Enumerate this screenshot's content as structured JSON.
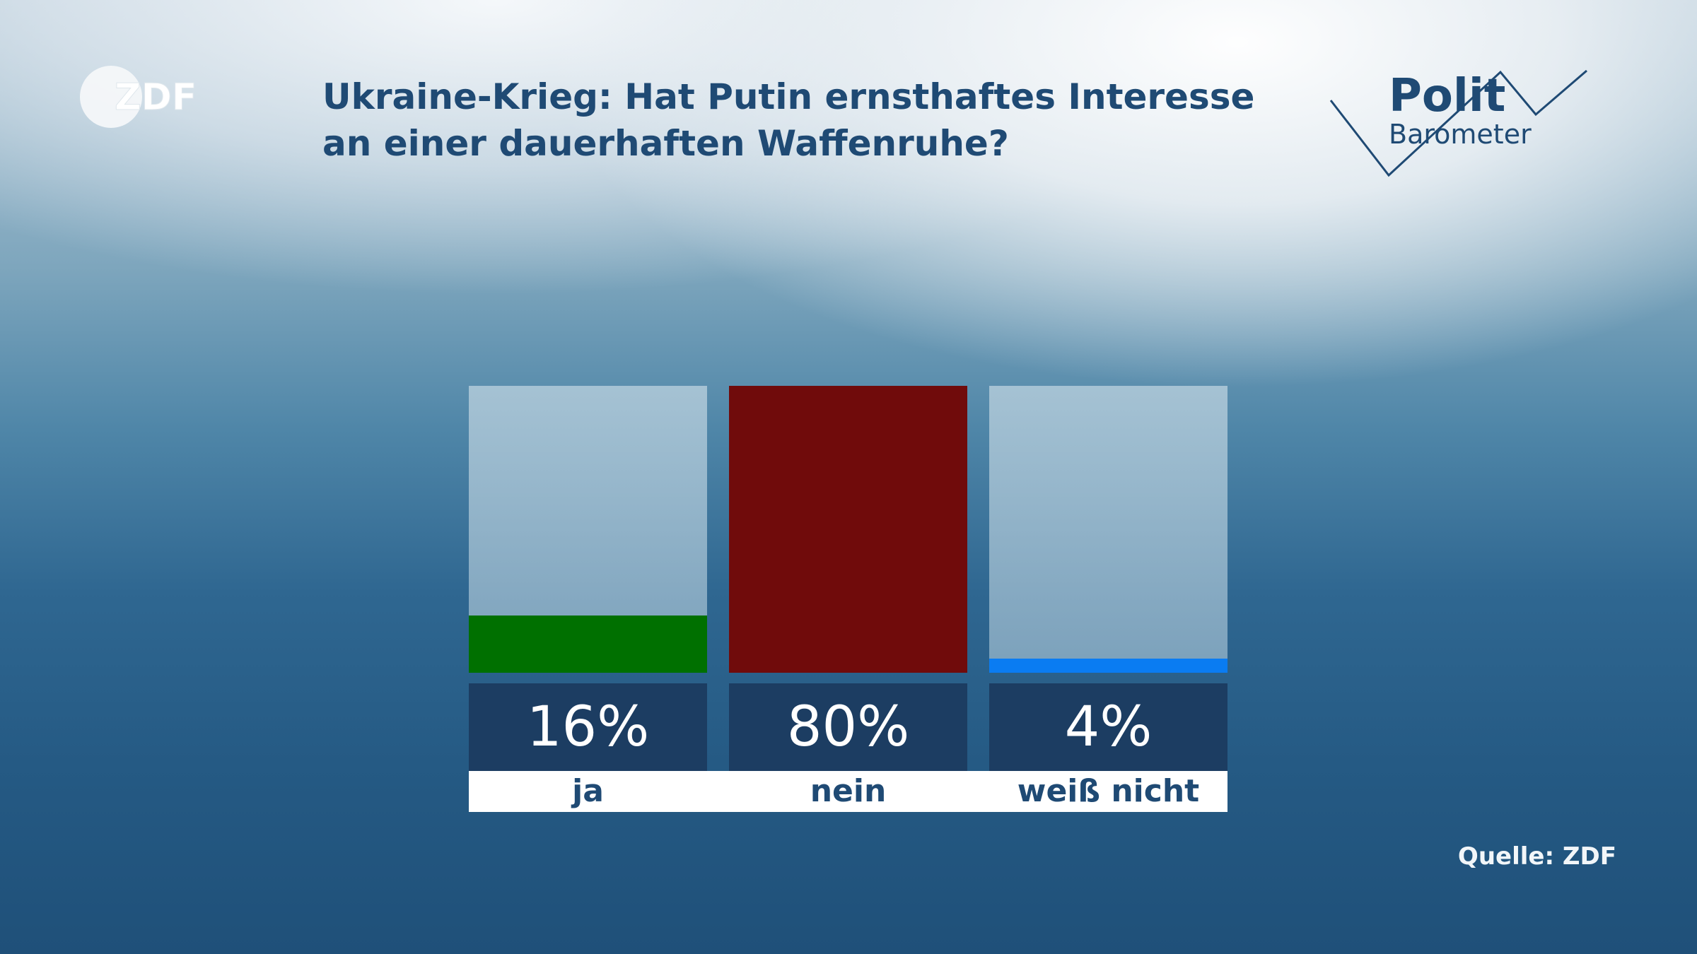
{
  "brand": {
    "broadcaster_logo_text": "ZDF",
    "program_logo_line1": "Polit",
    "program_logo_line2": "Barometer"
  },
  "chart_data": {
    "type": "bar",
    "title": "Ukraine-Krieg: Hat Putin ernsthaftes Interesse an einer dauerhaften Waffenruhe?",
    "categories": [
      "ja",
      "nein",
      "weiß nicht"
    ],
    "values": [
      16,
      80,
      4
    ],
    "value_labels": [
      "16%",
      "80%",
      "4%"
    ],
    "unit": "%",
    "ylim": [
      0,
      80
    ],
    "colors": [
      "#007000",
      "#700b0b",
      "#0a7cf2"
    ],
    "track_color": "#a9c1d1",
    "grid": false,
    "legend": "none",
    "source": "Quelle: ZDF"
  }
}
